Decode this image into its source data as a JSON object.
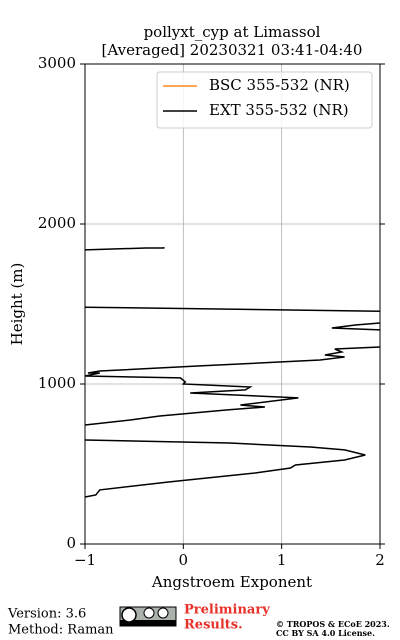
{
  "chart_data": {
    "type": "line",
    "title": [
      "pollyxt_cyp at Limassol",
      "[Averaged] 20230321 03:41-04:40"
    ],
    "x_label": "Angstroem Exponent",
    "y_label": "Height (m)",
    "xlim": [
      -1,
      2
    ],
    "xticks": [
      {
        "value": -1,
        "label": "−1"
      },
      0,
      1,
      2
    ],
    "ylim": [
      0,
      3000
    ],
    "yticks": [
      0,
      1000,
      2000,
      3000
    ],
    "grid": true,
    "legend": "upper right",
    "series": [
      {
        "name": "BSC 355-532 (NR)",
        "color": "#ff8c1a",
        "x": [],
        "y": []
      },
      {
        "name": "EXT 355-532 (NR)",
        "color": "#000000",
        "x": [
          -1,
          -0.38,
          -0.2,
          -0.2,
          null,
          -1,
          2.0,
          null,
          2.0,
          1.75,
          1.51,
          2.0,
          null,
          2.0,
          1.54,
          1.61,
          1.44,
          1.64,
          1.39,
          0.17,
          -0.85,
          -0.97,
          -0.85,
          -1,
          -0.03,
          0.02,
          0.0,
          0.68,
          0.63,
          0.07,
          1.17,
          0.58,
          0.83,
          0.45,
          -0.24,
          -0.54,
          -1,
          null,
          -1,
          0.47,
          1.29,
          1.64,
          1.85,
          1.64,
          1.14,
          1.09,
          0.73,
          -0.14,
          -0.85,
          -0.89,
          -1
        ],
        "y": [
          1838,
          1850,
          1850,
          1856,
          null,
          1480,
          1455,
          null,
          1381,
          1369,
          1350,
          1338,
          null,
          1231,
          1219,
          1200,
          1181,
          1169,
          1150,
          1113,
          1081,
          1069,
          1069,
          1050,
          1038,
          1013,
          1000,
          981,
          963,
          944,
          913,
          869,
          856,
          838,
          800,
          775,
          744,
          null,
          650,
          631,
          606,
          588,
          556,
          525,
          494,
          475,
          444,
          388,
          338,
          306,
          294
        ]
      }
    ]
  },
  "footer": {
    "version": "Version: 3.6",
    "method": "Method: Raman",
    "preliminary": [
      "Preliminary",
      "Results."
    ],
    "copyright": [
      "© TROPOS & ECoE 2023.",
      "CC BY SA 4.0 License."
    ]
  }
}
